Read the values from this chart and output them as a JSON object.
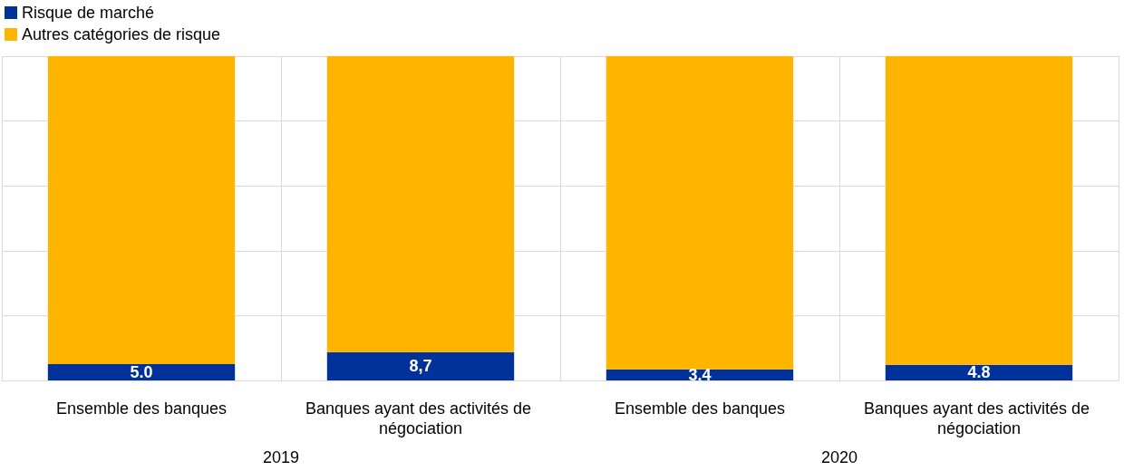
{
  "chart_data": {
    "type": "bar",
    "stacked": true,
    "categories": [
      "Ensemble des banques",
      "Banques ayant des activités de négociation",
      "Ensemble des banques",
      "Banques ayant des activités de négociation"
    ],
    "series": [
      {
        "name": "Risque de marché",
        "color": "#003299",
        "values": [
          5.0,
          8.7,
          3.4,
          4.8
        ],
        "value_labels": [
          "5.0",
          "8,7",
          "3.4",
          "4.8"
        ]
      },
      {
        "name": "Autres catégories de risque",
        "color": "#ffb400",
        "values": [
          95.0,
          91.3,
          96.6,
          95.2
        ]
      }
    ],
    "ylim": [
      0,
      100
    ],
    "yticks": [
      0,
      20,
      40,
      60,
      80,
      100
    ],
    "tick_labels": "x",
    "annotations": [
      "2019",
      "2020"
    ],
    "legend": "top left",
    "grid": true
  }
}
